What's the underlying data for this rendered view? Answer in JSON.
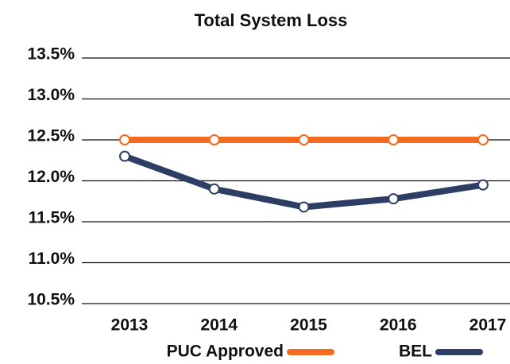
{
  "chart_data": {
    "type": "line",
    "title": "Total System Loss",
    "categories": [
      "2013",
      "2014",
      "2015",
      "2016",
      "2017"
    ],
    "series": [
      {
        "name": "PUC Approved",
        "color": "#f26b21",
        "values": [
          12.5,
          12.5,
          12.5,
          12.5,
          12.5
        ]
      },
      {
        "name": "BEL",
        "color": "#2d3e64",
        "values": [
          12.3,
          11.9,
          11.68,
          11.78,
          11.95
        ]
      }
    ],
    "ylim": [
      10.5,
      13.5
    ],
    "yticks": [
      {
        "value": 10.5,
        "label": "10.5%"
      },
      {
        "value": 11.0,
        "label": "11.0%"
      },
      {
        "value": 11.5,
        "label": "11.5%"
      },
      {
        "value": 12.0,
        "label": "12.0%"
      },
      {
        "value": 12.5,
        "label": "12.5%"
      },
      {
        "value": 13.0,
        "label": "13.0%"
      },
      {
        "value": 13.5,
        "label": "13.5%"
      }
    ],
    "grid": true,
    "legend": "bottom"
  }
}
